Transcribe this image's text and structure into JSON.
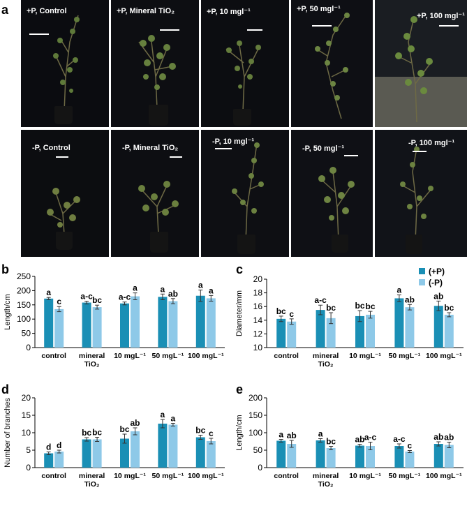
{
  "panel_labels": [
    "a",
    "b",
    "c",
    "d",
    "e"
  ],
  "photos": [
    {
      "caption": "+P, Control",
      "bg": "#0b0c10"
    },
    {
      "caption": "+P, Mineral TiO₂",
      "bg": "#0d0e12"
    },
    {
      "caption": "+P, 10 mgl⁻¹",
      "bg": "#0c0d11"
    },
    {
      "caption": "+P, 50 mgl⁻¹",
      "bg": "#0e0f14"
    },
    {
      "caption": "+P, 100 mgl⁻¹",
      "bg": "#1a1d22"
    },
    {
      "caption": "-P, Control",
      "bg": "#0c0d10"
    },
    {
      "caption": "-P, Mineral TiO₂",
      "bg": "#0d0e12"
    },
    {
      "caption": "-P, 10 mgl⁻¹",
      "bg": "#0e0f13"
    },
    {
      "caption": "-P, 50 mgl⁻¹",
      "bg": "#0f1015"
    },
    {
      "caption": "-P, 100 mgl⁻¹",
      "bg": "#111318"
    }
  ],
  "colors": {
    "plus_p": "#1a8fb5",
    "minus_p": "#8ec9e8",
    "axis": "#000000"
  },
  "chart_data": [
    {
      "panel": "b",
      "type": "bar",
      "categories": [
        [
          "control"
        ],
        [
          "mineral",
          "TiO₂"
        ],
        [
          "10 mgL⁻¹"
        ],
        [
          "50 mgL⁻¹"
        ],
        [
          "100 mgL⁻¹"
        ]
      ],
      "ylabel": "Length/cm",
      "ylim": [
        0,
        250
      ],
      "yticks": [
        0,
        50,
        100,
        150,
        200,
        250
      ],
      "series": [
        {
          "name": "(+P)",
          "values": [
            172,
            158,
            155,
            178,
            182
          ],
          "errors": [
            4,
            5,
            5,
            10,
            20
          ],
          "letters": [
            "a",
            "a-c",
            "a-c",
            "a",
            "a"
          ]
        },
        {
          "name": "(-P)",
          "values": [
            135,
            142,
            180,
            163,
            173
          ],
          "errors": [
            9,
            7,
            12,
            9,
            10
          ],
          "letters": [
            "c",
            "bc",
            "a",
            "ab",
            "a"
          ]
        }
      ]
    },
    {
      "panel": "c",
      "type": "bar",
      "categories": [
        [
          "control"
        ],
        [
          "mineral",
          "TiO₂"
        ],
        [
          "10 mgL⁻¹"
        ],
        [
          "50 mgL⁻¹"
        ],
        [
          "100 mgL⁻¹"
        ]
      ],
      "ylabel": "Diameter/mm",
      "ylim": [
        10,
        20
      ],
      "yticks": [
        10,
        12,
        14,
        16,
        18,
        20
      ],
      "legend": [
        "(+P)",
        "(-P)"
      ],
      "series": [
        {
          "name": "(+P)",
          "values": [
            14.2,
            15.5,
            14.6,
            17.2,
            16.1
          ],
          "errors": [
            0.4,
            0.7,
            0.8,
            0.5,
            0.7
          ],
          "letters": [
            "bc",
            "a-c",
            "bc",
            "a",
            "ab"
          ]
        },
        {
          "name": "(-P)",
          "values": [
            13.8,
            14.3,
            14.8,
            15.9,
            14.8
          ],
          "errors": [
            0.4,
            0.8,
            0.5,
            0.4,
            0.3
          ],
          "letters": [
            "c",
            "bc",
            "bc",
            "ab",
            "bc"
          ]
        }
      ]
    },
    {
      "panel": "d",
      "type": "bar",
      "categories": [
        [
          "control"
        ],
        [
          "mineral",
          "TiO₂"
        ],
        [
          "10 mgL⁻¹"
        ],
        [
          "50 mgL⁻¹"
        ],
        [
          "100 mgL⁻¹"
        ]
      ],
      "ylabel": "Number of branches",
      "ylim": [
        0,
        20
      ],
      "yticks": [
        0,
        5,
        10,
        15,
        20
      ],
      "series": [
        {
          "name": "(+P)",
          "values": [
            4.1,
            8.1,
            8.3,
            12.6,
            8.7
          ],
          "errors": [
            0.4,
            0.5,
            1.3,
            1.2,
            0.6
          ],
          "letters": [
            "d",
            "bc",
            "bc",
            "a",
            "bc"
          ]
        },
        {
          "name": "(-P)",
          "values": [
            4.6,
            8.1,
            10.4,
            12.3,
            7.6
          ],
          "errors": [
            0.4,
            0.6,
            1.0,
            0.4,
            0.8
          ],
          "letters": [
            "d",
            "bc",
            "ab",
            "a",
            "c"
          ]
        }
      ]
    },
    {
      "panel": "e",
      "type": "bar",
      "categories": [
        [
          "control"
        ],
        [
          "mineral",
          "TiO₂"
        ],
        [
          "10 mgL⁻¹"
        ],
        [
          "50 mgL⁻¹"
        ],
        [
          "100 mgL⁻¹"
        ]
      ],
      "ylabel": "Length/cm",
      "ylim": [
        0,
        200
      ],
      "yticks": [
        0,
        50,
        100,
        150,
        200
      ],
      "series": [
        {
          "name": "(+P)",
          "values": [
            77,
            78,
            63,
            62,
            68
          ],
          "errors": [
            4,
            5,
            4,
            6,
            6
          ],
          "letters": [
            "a",
            "a",
            "ab",
            "a-c",
            "ab"
          ]
        },
        {
          "name": "(-P)",
          "values": [
            68,
            56,
            62,
            46,
            65
          ],
          "errors": [
            10,
            5,
            11,
            3,
            8
          ],
          "letters": [
            "ab",
            "bc",
            "a-c",
            "c",
            "ab"
          ]
        }
      ]
    }
  ]
}
